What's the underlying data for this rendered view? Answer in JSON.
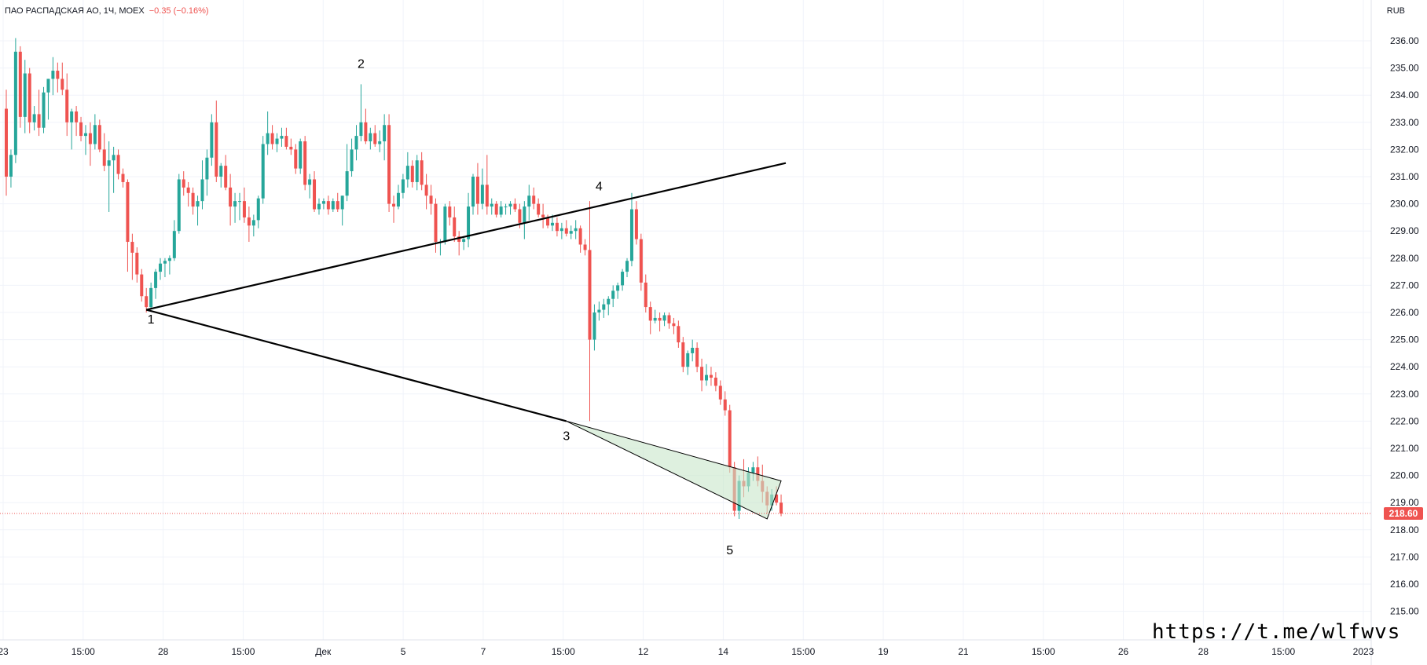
{
  "header": {
    "symbol": "ПАО РАСПАДСКАЯ АО, 1Ч, MOEX",
    "change": "−0.35 (−0.16%)"
  },
  "currency": "RUB",
  "watermark": "https://t.me/wlfwvs",
  "colors": {
    "up": "#26a69a",
    "down": "#ef5350",
    "grid": "#f0f3fa",
    "price_tag": "#ef5350",
    "triangle_fill": "#c8e6c9"
  },
  "chart_data": {
    "type": "candlestick",
    "ylim": [
      214.5,
      236.8
    ],
    "y_ticks": [
      "215.00",
      "216.00",
      "217.00",
      "218.00",
      "219.00",
      "220.00",
      "221.00",
      "222.00",
      "223.00",
      "224.00",
      "225.00",
      "226.00",
      "227.00",
      "228.00",
      "229.00",
      "230.00",
      "231.00",
      "232.00",
      "233.00",
      "234.00",
      "235.00",
      "236.00"
    ],
    "x_tick_labels": [
      "23",
      "15:00",
      "28",
      "15:00",
      "Дек",
      "5",
      "7",
      "15:00",
      "12",
      "14",
      "15:00",
      "19",
      "21",
      "15:00",
      "26",
      "28",
      "15:00",
      "2023"
    ],
    "last_price": "218.60",
    "wave_labels": [
      {
        "label": "1",
        "price": 225.6
      },
      {
        "label": "2",
        "price": 235.0
      },
      {
        "label": "3",
        "price": 221.3
      },
      {
        "label": "4",
        "price": 230.5
      },
      {
        "label": "5",
        "price": 217.1
      }
    ],
    "lines": [
      {
        "name": "upper-trendline",
        "from": {
          "bar": 30,
          "price": 226.1
        },
        "to": {
          "bar": 167,
          "price": 231.5
        }
      },
      {
        "name": "lower-trendline",
        "from": {
          "bar": 30,
          "price": 226.1
        },
        "to": {
          "bar": 120,
          "price": 222.0
        }
      }
    ],
    "triangle": [
      {
        "bar": 120,
        "price": 222.0
      },
      {
        "bar": 166,
        "price": 219.8
      },
      {
        "bar": 163,
        "price": 218.4
      }
    ],
    "candles": [
      [
        233.5,
        234.2,
        230.3,
        231.0
      ],
      [
        231.0,
        232.0,
        230.6,
        231.8
      ],
      [
        231.8,
        236.1,
        231.5,
        235.6
      ],
      [
        235.6,
        235.8,
        232.8,
        233.2
      ],
      [
        233.2,
        235.3,
        232.6,
        234.8
      ],
      [
        234.8,
        235.0,
        232.6,
        233.0
      ],
      [
        233.0,
        233.6,
        232.7,
        233.3
      ],
      [
        233.3,
        234.2,
        232.5,
        232.8
      ],
      [
        232.8,
        234.3,
        232.6,
        234.1
      ],
      [
        234.1,
        234.6,
        233.1,
        234.6
      ],
      [
        234.6,
        235.4,
        234.0,
        234.9
      ],
      [
        234.9,
        235.2,
        234.1,
        234.6
      ],
      [
        234.6,
        235.2,
        234.0,
        234.2
      ],
      [
        234.2,
        234.8,
        232.5,
        233.0
      ],
      [
        233.0,
        233.5,
        232.0,
        233.4
      ],
      [
        233.4,
        233.6,
        232.5,
        233.0
      ],
      [
        233.0,
        233.2,
        232.3,
        232.5
      ],
      [
        232.5,
        232.9,
        231.8,
        232.6
      ],
      [
        232.6,
        233.0,
        231.4,
        232.2
      ],
      [
        232.2,
        233.3,
        232.0,
        232.9
      ],
      [
        232.9,
        233.1,
        231.9,
        232.0
      ],
      [
        232.0,
        232.6,
        231.2,
        231.4
      ],
      [
        231.4,
        232.3,
        229.7,
        231.6
      ],
      [
        231.6,
        232.1,
        230.4,
        231.8
      ],
      [
        231.8,
        232.0,
        230.9,
        231.1
      ],
      [
        231.1,
        231.3,
        230.6,
        230.8
      ],
      [
        230.8,
        230.9,
        227.5,
        228.6
      ],
      [
        228.6,
        228.9,
        227.2,
        228.2
      ],
      [
        228.2,
        228.4,
        227.1,
        227.4
      ],
      [
        227.4,
        227.6,
        226.4,
        226.6
      ],
      [
        226.6,
        226.9,
        226.0,
        226.2
      ],
      [
        226.2,
        227.1,
        226.1,
        226.9
      ],
      [
        226.9,
        227.6,
        226.5,
        227.5
      ],
      [
        227.5,
        228.0,
        227.2,
        227.8
      ],
      [
        227.8,
        228.0,
        227.3,
        227.9
      ],
      [
        227.9,
        228.1,
        227.4,
        228.0
      ],
      [
        228.0,
        229.4,
        227.9,
        229.0
      ],
      [
        229.0,
        231.1,
        228.9,
        230.9
      ],
      [
        230.9,
        231.2,
        230.3,
        230.6
      ],
      [
        230.6,
        230.8,
        229.9,
        230.4
      ],
      [
        230.4,
        230.6,
        229.6,
        229.9
      ],
      [
        229.9,
        230.3,
        229.2,
        230.1
      ],
      [
        230.1,
        231.6,
        229.8,
        230.9
      ],
      [
        230.9,
        232.0,
        230.3,
        231.7
      ],
      [
        231.7,
        233.3,
        231.4,
        233.0
      ],
      [
        233.0,
        233.8,
        230.8,
        231.0
      ],
      [
        231.0,
        231.5,
        230.6,
        231.4
      ],
      [
        231.4,
        231.8,
        230.5,
        230.6
      ],
      [
        230.6,
        231.1,
        229.2,
        229.9
      ],
      [
        229.9,
        230.4,
        229.3,
        230.1
      ],
      [
        230.1,
        230.4,
        229.4,
        230.1
      ],
      [
        230.1,
        230.6,
        229.3,
        229.5
      ],
      [
        229.5,
        229.9,
        228.6,
        229.2
      ],
      [
        229.2,
        229.6,
        228.8,
        229.4
      ],
      [
        229.4,
        230.3,
        229.1,
        230.2
      ],
      [
        230.2,
        232.5,
        230.0,
        232.2
      ],
      [
        232.2,
        233.4,
        231.8,
        232.6
      ],
      [
        232.6,
        232.9,
        232.0,
        232.2
      ],
      [
        232.2,
        232.6,
        231.9,
        232.4
      ],
      [
        232.4,
        232.8,
        232.1,
        232.5
      ],
      [
        232.5,
        232.8,
        232.0,
        232.1
      ],
      [
        232.1,
        232.4,
        231.8,
        232.0
      ],
      [
        232.0,
        232.2,
        231.1,
        231.3
      ],
      [
        231.3,
        232.4,
        231.1,
        232.3
      ],
      [
        232.3,
        232.5,
        230.5,
        230.7
      ],
      [
        230.7,
        231.1,
        230.2,
        230.9
      ],
      [
        230.9,
        231.2,
        229.7,
        229.8
      ],
      [
        229.8,
        230.2,
        229.6,
        230.0
      ],
      [
        230.0,
        230.2,
        229.8,
        230.1
      ],
      [
        230.1,
        230.3,
        229.6,
        229.8
      ],
      [
        229.8,
        230.2,
        229.7,
        230.1
      ],
      [
        230.1,
        230.4,
        229.7,
        229.8
      ],
      [
        229.8,
        230.3,
        229.2,
        230.3
      ],
      [
        230.3,
        232.2,
        230.1,
        231.2
      ],
      [
        231.2,
        232.4,
        231.0,
        232.0
      ],
      [
        232.0,
        232.9,
        231.6,
        232.5
      ],
      [
        232.5,
        234.4,
        232.3,
        233.0
      ],
      [
        233.0,
        233.5,
        232.2,
        232.3
      ],
      [
        232.3,
        232.8,
        232.0,
        232.6
      ],
      [
        232.6,
        232.9,
        232.1,
        232.2
      ],
      [
        232.2,
        232.7,
        231.9,
        232.3
      ],
      [
        232.3,
        233.3,
        231.6,
        232.9
      ],
      [
        232.9,
        233.3,
        229.7,
        230.0
      ],
      [
        230.0,
        230.3,
        229.3,
        229.9
      ],
      [
        229.9,
        230.7,
        229.8,
        230.4
      ],
      [
        230.4,
        231.1,
        230.2,
        230.9
      ],
      [
        230.9,
        231.9,
        230.6,
        231.4
      ],
      [
        231.4,
        231.6,
        230.6,
        230.8
      ],
      [
        230.8,
        231.8,
        230.5,
        231.6
      ],
      [
        231.6,
        231.9,
        230.5,
        230.7
      ],
      [
        230.7,
        231.1,
        229.8,
        230.3
      ],
      [
        230.3,
        230.7,
        229.6,
        230.0
      ],
      [
        230.0,
        230.2,
        228.2,
        228.6
      ],
      [
        228.6,
        228.7,
        228.1,
        228.6
      ],
      [
        228.6,
        230.0,
        228.5,
        229.9
      ],
      [
        229.9,
        230.1,
        229.2,
        229.5
      ],
      [
        229.5,
        229.9,
        228.6,
        228.8
      ],
      [
        228.8,
        229.0,
        228.1,
        228.6
      ],
      [
        228.6,
        228.8,
        228.3,
        228.7
      ],
      [
        228.7,
        230.4,
        228.4,
        229.9
      ],
      [
        229.9,
        231.1,
        229.6,
        231.0
      ],
      [
        231.0,
        231.5,
        229.6,
        230.0
      ],
      [
        230.0,
        231.3,
        229.8,
        230.7
      ],
      [
        230.7,
        231.8,
        229.6,
        229.9
      ],
      [
        229.9,
        230.2,
        229.6,
        230.0
      ],
      [
        230.0,
        230.1,
        229.5,
        229.6
      ],
      [
        229.6,
        230.1,
        229.5,
        229.9
      ],
      [
        229.9,
        230.0,
        229.6,
        229.9
      ],
      [
        229.9,
        230.1,
        229.6,
        230.0
      ],
      [
        230.0,
        230.2,
        229.7,
        229.8
      ],
      [
        229.8,
        230.0,
        229.1,
        229.3
      ],
      [
        229.3,
        230.1,
        228.7,
        229.9
      ],
      [
        229.9,
        230.7,
        229.4,
        230.3
      ],
      [
        230.3,
        230.6,
        229.8,
        230.0
      ],
      [
        230.0,
        230.2,
        229.5,
        229.6
      ],
      [
        229.6,
        230.0,
        229.1,
        229.5
      ],
      [
        229.5,
        229.6,
        229.1,
        229.2
      ],
      [
        229.2,
        229.6,
        229.0,
        229.3
      ],
      [
        229.3,
        229.5,
        228.8,
        229.0
      ],
      [
        229.0,
        229.3,
        228.7,
        229.1
      ],
      [
        229.1,
        229.4,
        228.8,
        228.9
      ],
      [
        228.9,
        229.2,
        228.7,
        229.0
      ],
      [
        229.0,
        229.4,
        228.7,
        229.1
      ],
      [
        229.1,
        229.2,
        228.2,
        228.5
      ],
      [
        228.5,
        228.7,
        228.1,
        228.3
      ],
      [
        228.3,
        230.1,
        222.0,
        225.0
      ],
      [
        225.0,
        226.3,
        224.6,
        226.0
      ],
      [
        226.0,
        226.4,
        225.7,
        226.1
      ],
      [
        226.1,
        226.5,
        225.8,
        226.3
      ],
      [
        226.3,
        226.6,
        225.9,
        226.5
      ],
      [
        226.5,
        227.0,
        226.2,
        226.8
      ],
      [
        226.8,
        227.1,
        226.5,
        227.0
      ],
      [
        227.0,
        227.6,
        226.8,
        227.5
      ],
      [
        227.5,
        228.0,
        227.3,
        227.9
      ],
      [
        227.9,
        230.4,
        227.7,
        229.8
      ],
      [
        229.8,
        230.1,
        228.5,
        228.7
      ],
      [
        228.7,
        228.9,
        226.8,
        227.1
      ],
      [
        227.1,
        227.4,
        226.0,
        226.2
      ],
      [
        226.2,
        226.4,
        225.2,
        225.7
      ],
      [
        225.7,
        226.1,
        225.6,
        225.8
      ],
      [
        225.8,
        226.0,
        225.3,
        225.7
      ],
      [
        225.7,
        226.0,
        225.5,
        225.9
      ],
      [
        225.9,
        226.0,
        225.4,
        225.6
      ],
      [
        225.6,
        225.8,
        225.2,
        225.5
      ],
      [
        225.5,
        225.7,
        224.7,
        224.9
      ],
      [
        224.9,
        225.1,
        223.8,
        224.0
      ],
      [
        224.0,
        224.6,
        223.7,
        224.5
      ],
      [
        224.5,
        225.0,
        224.2,
        224.7
      ],
      [
        224.7,
        224.9,
        223.8,
        224.0
      ],
      [
        224.0,
        224.3,
        223.1,
        223.5
      ],
      [
        223.5,
        224.1,
        223.3,
        223.7
      ],
      [
        223.7,
        224.0,
        223.3,
        223.6
      ],
      [
        223.6,
        223.8,
        223.1,
        223.3
      ],
      [
        223.3,
        223.5,
        222.6,
        222.8
      ],
      [
        222.8,
        223.1,
        222.2,
        222.4
      ],
      [
        222.4,
        222.6,
        220.1,
        220.3
      ],
      [
        220.3,
        220.5,
        218.5,
        218.7
      ],
      [
        218.7,
        220.0,
        218.4,
        219.8
      ],
      [
        219.8,
        220.6,
        219.2,
        219.6
      ],
      [
        219.6,
        220.3,
        219.4,
        220.1
      ],
      [
        220.1,
        220.5,
        219.8,
        220.3
      ],
      [
        220.3,
        220.7,
        219.6,
        219.8
      ],
      [
        219.8,
        220.4,
        219.0,
        219.4
      ],
      [
        219.4,
        219.6,
        218.6,
        218.9
      ],
      [
        218.9,
        219.5,
        218.7,
        219.3
      ],
      [
        219.3,
        219.6,
        218.9,
        219.0
      ],
      [
        219.0,
        219.3,
        218.5,
        218.6
      ]
    ]
  }
}
